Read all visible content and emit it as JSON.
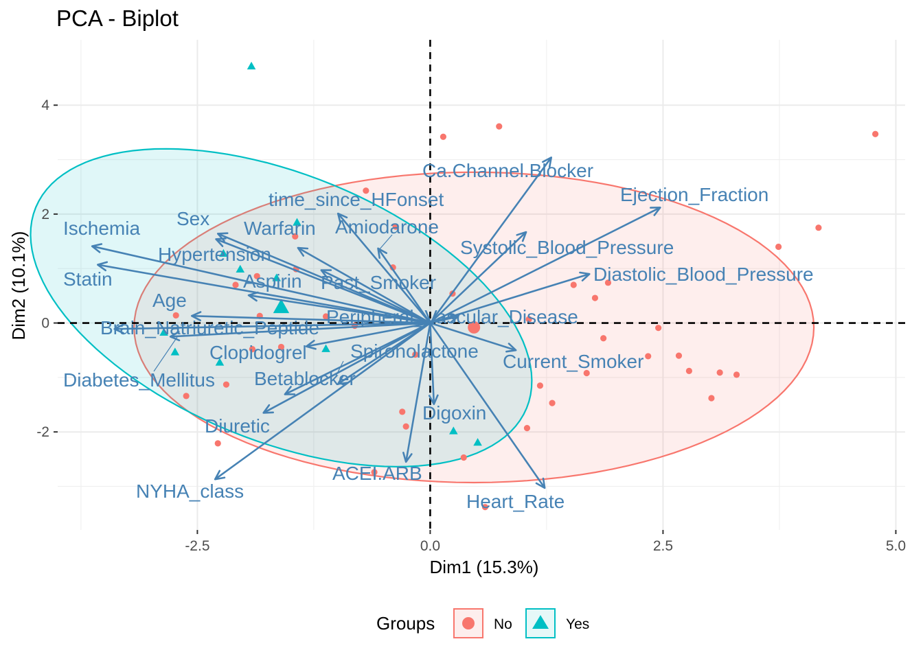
{
  "chart_data": {
    "type": "scatter",
    "title": "PCA - Biplot",
    "xlabel": "Dim1 (15.3%)",
    "ylabel": "Dim2 (10.1%)",
    "xlim": [
      -4.0,
      5.1
    ],
    "ylim": [
      -3.8,
      5.2
    ],
    "x_ticks": [
      -2.5,
      0.0,
      2.5,
      5.0
    ],
    "x_tick_labels": [
      "-2.5",
      "0.0",
      "2.5",
      "5.0"
    ],
    "y_ticks": [
      -2,
      0,
      2,
      4
    ],
    "y_tick_labels": [
      "-2",
      "0",
      "2",
      "4"
    ],
    "grid": true,
    "legend": {
      "title": "Groups",
      "position": "bottom",
      "entries": [
        {
          "label": "No",
          "shape": "circle",
          "color": "#F8766D"
        },
        {
          "label": "Yes",
          "shape": "triangle",
          "color": "#00BFC4"
        }
      ]
    },
    "series": [
      {
        "name": "No",
        "marker": "circle",
        "color": "#F8766D",
        "points": [
          [
            0.14,
            3.42
          ],
          [
            0.74,
            3.61
          ],
          [
            4.78,
            3.47
          ],
          [
            -0.69,
            2.43
          ],
          [
            4.17,
            1.75
          ],
          [
            -0.37,
            1.77
          ],
          [
            -1.45,
            1.59
          ],
          [
            -1.44,
            0.99
          ],
          [
            -0.4,
            1.02
          ],
          [
            3.74,
            1.4
          ],
          [
            -1.86,
            0.86
          ],
          [
            -2.09,
            0.7
          ],
          [
            1.54,
            0.7
          ],
          [
            1.91,
            0.74
          ],
          [
            1.77,
            0.46
          ],
          [
            0.24,
            0.54
          ],
          [
            -2.73,
            0.14
          ],
          [
            -1.83,
            0.13
          ],
          [
            -1.12,
            0.12
          ],
          [
            -0.81,
            -0.05
          ],
          [
            1.06,
            0.07
          ],
          [
            1.86,
            -0.28
          ],
          [
            2.45,
            -0.09
          ],
          [
            -1.91,
            -0.48
          ],
          [
            -1.6,
            -0.44
          ],
          [
            -0.16,
            -0.58
          ],
          [
            2.34,
            -0.61
          ],
          [
            2.67,
            -0.6
          ],
          [
            2.78,
            -0.88
          ],
          [
            3.11,
            -0.91
          ],
          [
            3.29,
            -0.95
          ],
          [
            1.68,
            -0.92
          ],
          [
            1.18,
            -1.15
          ],
          [
            1.31,
            -1.47
          ],
          [
            -2.62,
            -1.34
          ],
          [
            -2.19,
            -1.13
          ],
          [
            3.02,
            -1.38
          ],
          [
            -0.3,
            -1.63
          ],
          [
            -0.26,
            -1.9
          ],
          [
            1.04,
            -1.93
          ],
          [
            0.36,
            -2.47
          ],
          [
            -2.28,
            -2.21
          ],
          [
            -0.6,
            -2.74
          ],
          [
            0.59,
            -3.38
          ]
        ],
        "centroid": [
          0.47,
          -0.08
        ]
      },
      {
        "name": "Yes",
        "marker": "triangle",
        "color": "#00BFC4",
        "points": [
          [
            -1.92,
            4.71
          ],
          [
            -1.43,
            1.84
          ],
          [
            -2.22,
            1.27
          ],
          [
            -2.04,
            0.98
          ],
          [
            -1.65,
            0.82
          ],
          [
            -2.86,
            -0.18
          ],
          [
            -2.74,
            -0.54
          ],
          [
            -1.12,
            -0.48
          ],
          [
            -2.26,
            -0.73
          ],
          [
            0.25,
            -1.99
          ],
          [
            0.51,
            -2.2
          ]
        ],
        "centroid": [
          -1.6,
          0.28
        ]
      }
    ],
    "ellipses": [
      {
        "group": "No",
        "center": [
          0.47,
          -0.08
        ],
        "semi_axes": [
          3.65,
          2.85
        ],
        "angle_deg": 0
      },
      {
        "group": "Yes",
        "center": [
          -1.6,
          0.28
        ],
        "semi_axes": [
          3.4,
          2.05
        ],
        "angle_deg": -50
      }
    ],
    "variables": [
      {
        "name": "Ca.Channel.Blocker",
        "x": 1.3,
        "y": 3.04
      },
      {
        "name": "Ejection_Fraction",
        "x": 2.47,
        "y": 2.12
      },
      {
        "name": "Systolic_Blood_Pressure",
        "x": 1.03,
        "y": 1.67
      },
      {
        "name": "Diastolic_Blood_Pressure",
        "x": 1.71,
        "y": 0.9
      },
      {
        "name": "Peripheral_Vascular_Disease",
        "x": 0.3,
        "y": 0.12
      },
      {
        "name": "Current_Smoker",
        "x": 0.92,
        "y": -0.5
      },
      {
        "name": "Digoxin",
        "x": 0.04,
        "y": -1.49
      },
      {
        "name": "Heart_Rate",
        "x": 1.23,
        "y": -3.03
      },
      {
        "name": "ACEI.ARB",
        "x": -0.26,
        "y": -2.55
      },
      {
        "name": "NYHA_class",
        "x": -2.31,
        "y": -2.87
      },
      {
        "name": "Diuretic",
        "x": -1.79,
        "y": -1.65
      },
      {
        "name": "Betablocker",
        "x": -1.56,
        "y": -1.31
      },
      {
        "name": "Spironolactone",
        "x": -0.99,
        "y": -1.12
      },
      {
        "name": "Clopidogrel",
        "x": -1.33,
        "y": -0.43
      },
      {
        "name": "Diabetes_Mellitus",
        "x": -2.79,
        "y": -0.25
      },
      {
        "name": "Brain_Natriuretic_Peptide",
        "x": -3.39,
        "y": -0.11
      },
      {
        "name": "Age",
        "x": -2.56,
        "y": 0.13
      },
      {
        "name": "Past_Smoker",
        "x": -1.17,
        "y": 0.97
      },
      {
        "name": "Aspirin",
        "x": -1.95,
        "y": 0.51
      },
      {
        "name": "Statin",
        "x": -3.57,
        "y": 1.07
      },
      {
        "name": "Ischemia",
        "x": -3.63,
        "y": 1.41
      },
      {
        "name": "Hypertension",
        "x": -2.3,
        "y": 1.54
      },
      {
        "name": "Sex",
        "x": -2.28,
        "y": 1.64
      },
      {
        "name": "Warfarin",
        "x": -1.42,
        "y": 1.38
      },
      {
        "name": "time_since_HFonset",
        "x": -0.99,
        "y": 2.01
      },
      {
        "name": "Amiodarone",
        "x": -0.56,
        "y": 1.37
      }
    ]
  }
}
